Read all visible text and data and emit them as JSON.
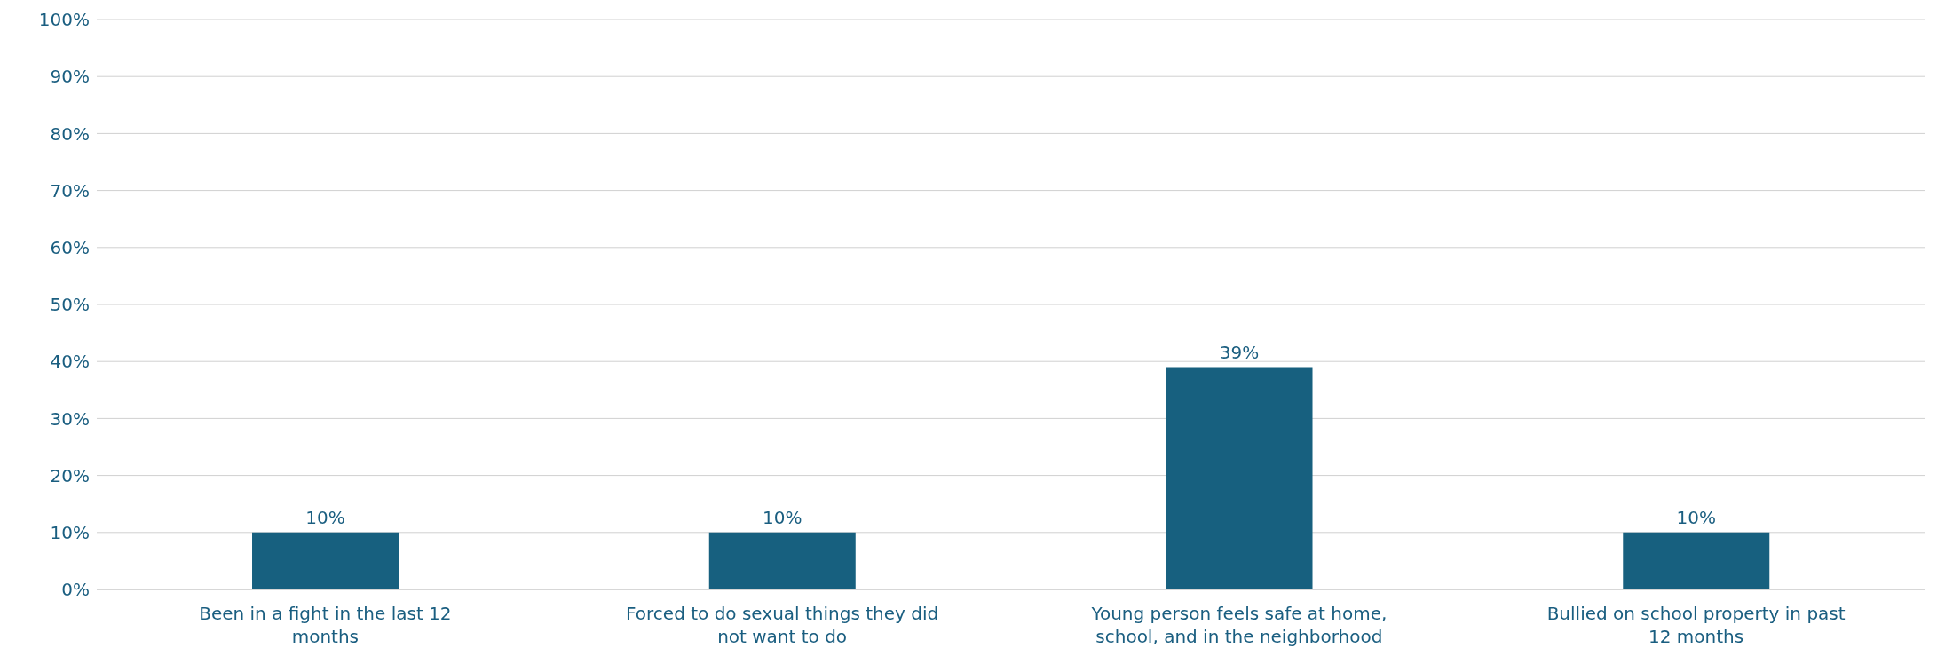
{
  "chart_data": {
    "type": "bar",
    "categories": [
      "Been in a fight in the last 12 months",
      "Forced to do sexual things they did not want to do",
      "Young person feels safe at home, school, and in the neighborhood",
      "Bullied on school property in past 12 months"
    ],
    "values": [
      10,
      10,
      39,
      10
    ],
    "value_labels": [
      "10%",
      "10%",
      "39%",
      "10%"
    ],
    "color": "#17607f",
    "ylim": [
      0,
      100
    ],
    "yticks": [
      {
        "value": 0,
        "label": "0%"
      },
      {
        "value": 10,
        "label": "10%"
      },
      {
        "value": 20,
        "label": "20%"
      },
      {
        "value": 30,
        "label": "30%"
      },
      {
        "value": 40,
        "label": "40%"
      },
      {
        "value": 50,
        "label": "50%"
      },
      {
        "value": 60,
        "label": "60%"
      },
      {
        "value": 70,
        "label": "70%"
      },
      {
        "value": 80,
        "label": "80%"
      },
      {
        "value": 90,
        "label": "90%"
      },
      {
        "value": 100,
        "label": "100%"
      }
    ],
    "grid": "y",
    "legend": false
  }
}
